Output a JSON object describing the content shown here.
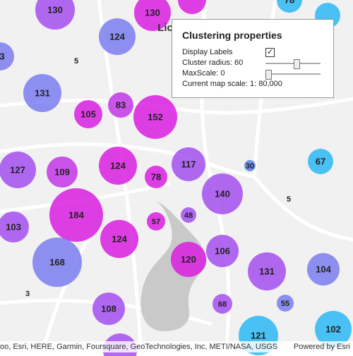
{
  "map": {
    "place_label": "Lic",
    "clusters": [
      130,
      130,
      124,
      5,
      3,
      131,
      105,
      83,
      152,
      127,
      109,
      124,
      78,
      117,
      30,
      67,
      140,
      5,
      184,
      103,
      57,
      48,
      124,
      106,
      168,
      120,
      131,
      104,
      3,
      108,
      68,
      55,
      102,
      121,
      78
    ],
    "attribution": "oo, Esri, HERE, Garmin, Foursquare, GeoTechnologies, Inc, METI/NASA, USGS",
    "powered_by": "Powered by Esri"
  },
  "panel": {
    "title": "Clustering properties",
    "display_labels": "Display Labels",
    "cluster_radius": {
      "label": "Cluster radius:",
      "value": 60
    },
    "max_scale": {
      "label": "MaxScale:",
      "value": 0
    },
    "map_scale": {
      "label": "Current map scale:",
      "value": "1: 80,000"
    }
  }
}
